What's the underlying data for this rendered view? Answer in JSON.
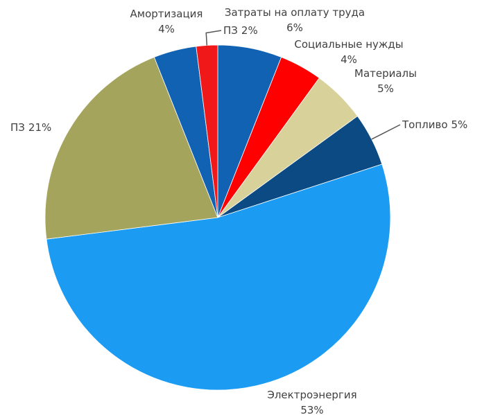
{
  "chart_data": {
    "type": "pie",
    "categories": [
      "Затраты на оплату труда",
      "Социальные нужды",
      "Материалы",
      "Топливо",
      "Электроэнергия",
      "ПЗ",
      "Амортизация",
      "ПЗ"
    ],
    "values": [
      6,
      4,
      5,
      5,
      53,
      21,
      4,
      2
    ],
    "value_labels": [
      "6%",
      "4%",
      "5%",
      "5%",
      "53%",
      "21%",
      "4%",
      "2%"
    ],
    "colors": [
      "#1262b4",
      "#ff0000",
      "#d8d199",
      "#0b4a82",
      "#1b9cf2",
      "#a4a45c",
      "#1262b4",
      "#f01818"
    ]
  }
}
